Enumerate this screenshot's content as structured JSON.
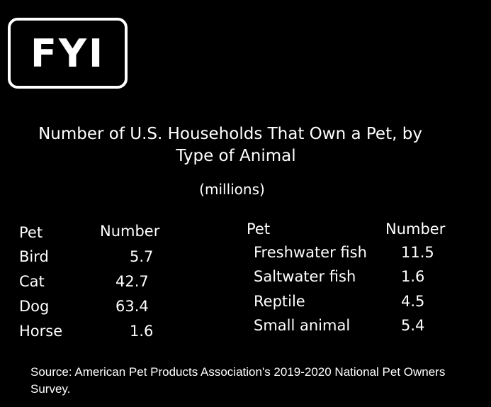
{
  "logo": {
    "text": "FYI"
  },
  "chart_data": {
    "type": "table",
    "title": "Number of U.S. Households That Own a Pet, by Type of Animal",
    "title_line1": "Number of U.S. Households That Own a Pet, by",
    "title_line2": "Type of Animal",
    "unit": "(millions)",
    "tables": [
      {
        "columns": [
          "Pet",
          "Number"
        ],
        "rows": [
          {
            "pet": "Bird",
            "number": "5.7"
          },
          {
            "pet": "Cat",
            "number": "42.7"
          },
          {
            "pet": "Dog",
            "number": "63.4"
          },
          {
            "pet": "Horse",
            "number": "1.6"
          }
        ]
      },
      {
        "columns": [
          "Pet",
          "Number"
        ],
        "rows": [
          {
            "pet": "Freshwater fish",
            "number": "11.5"
          },
          {
            "pet": "Saltwater fish",
            "number": "1.6"
          },
          {
            "pet": "Reptile",
            "number": "4.5"
          },
          {
            "pet": "Small animal",
            "number": "5.4"
          }
        ]
      }
    ],
    "source": "Source: American Pet Products Association's 2019-2020 National Pet Owners Survey."
  }
}
